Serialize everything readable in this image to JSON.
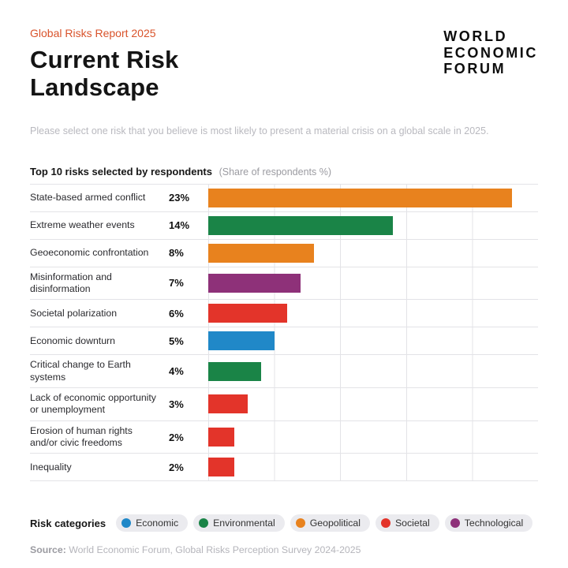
{
  "header": {
    "report_label": "Global Risks Report 2025",
    "title": "Current Risk\nLandscape",
    "logo": "WORLD\nECONOMIC\nFORUM"
  },
  "intro": "Please select one risk that you believe is most likely to present a material crisis on a global scale in 2025.",
  "chart_header": {
    "title": "Top 10 risks selected by respondents",
    "subtitle": "(Share of respondents %)"
  },
  "chart_data": {
    "type": "bar",
    "orientation": "horizontal",
    "title": "Top 10 risks selected by respondents",
    "xlabel": "Share of respondents %",
    "xlim": [
      0,
      25
    ],
    "grid": true,
    "grid_interval": 5,
    "categories": [
      "State-based armed conflict",
      "Extreme weather events",
      "Geoeconomic confrontation",
      "Misinformation and disinformation",
      "Societal polarization",
      "Economic downturn",
      "Critical change to Earth systems",
      "Lack of economic opportunity or unemployment",
      "Erosion of human rights and/or civic freedoms",
      "Inequality"
    ],
    "values": [
      23,
      14,
      8,
      7,
      6,
      5,
      4,
      3,
      2,
      2
    ],
    "value_labels": [
      "23%",
      "14%",
      "8%",
      "7%",
      "6%",
      "5%",
      "4%",
      "3%",
      "2%",
      "2%"
    ],
    "bar_categories": [
      "Geopolitical",
      "Environmental",
      "Geopolitical",
      "Technological",
      "Societal",
      "Economic",
      "Environmental",
      "Societal",
      "Societal",
      "Societal"
    ],
    "category_colors": {
      "Economic": "#2088c8",
      "Environmental": "#1a8447",
      "Geopolitical": "#e8821e",
      "Societal": "#e3342a",
      "Technological": "#8e3179"
    }
  },
  "legend": {
    "label": "Risk categories",
    "items": [
      {
        "label": "Economic",
        "color": "#2088c8"
      },
      {
        "label": "Environmental",
        "color": "#1a8447"
      },
      {
        "label": "Geopolitical",
        "color": "#e8821e"
      },
      {
        "label": "Societal",
        "color": "#e3342a"
      },
      {
        "label": "Technological",
        "color": "#8e3179"
      }
    ]
  },
  "source": {
    "prefix": "Source:",
    "text": " World Economic Forum, Global Risks Perception Survey 2024-2025"
  }
}
